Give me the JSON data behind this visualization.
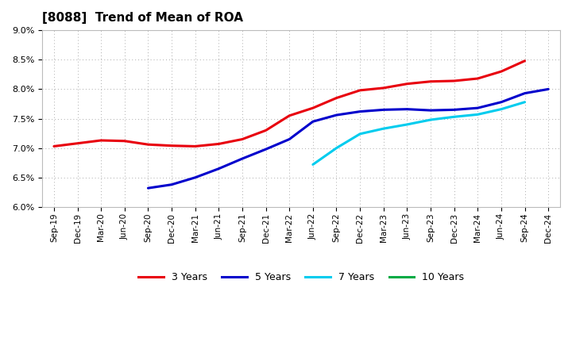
{
  "title": "[8088]  Trend of Mean of ROA",
  "xlabels": [
    "Sep-19",
    "Dec-19",
    "Mar-20",
    "Jun-20",
    "Sep-20",
    "Dec-20",
    "Mar-21",
    "Jun-21",
    "Sep-21",
    "Dec-21",
    "Mar-22",
    "Jun-22",
    "Sep-22",
    "Dec-22",
    "Mar-23",
    "Jun-23",
    "Sep-23",
    "Dec-23",
    "Mar-24",
    "Jun-24",
    "Sep-24",
    "Dec-24"
  ],
  "y_3yr": [
    7.03,
    7.08,
    7.13,
    7.12,
    7.06,
    7.04,
    7.03,
    7.07,
    7.15,
    7.3,
    7.55,
    7.68,
    7.85,
    7.98,
    8.02,
    8.09,
    8.13,
    8.14,
    8.18,
    8.3,
    8.48,
    null
  ],
  "y_5yr": [
    null,
    null,
    null,
    null,
    6.32,
    6.38,
    6.5,
    6.65,
    6.82,
    6.98,
    7.15,
    7.45,
    7.56,
    7.62,
    7.65,
    7.66,
    7.64,
    7.65,
    7.68,
    7.78,
    7.93,
    8.0
  ],
  "y_7yr": [
    null,
    null,
    null,
    null,
    null,
    null,
    null,
    null,
    null,
    null,
    null,
    6.72,
    7.0,
    7.24,
    7.33,
    7.4,
    7.48,
    7.53,
    7.57,
    7.66,
    7.78,
    null
  ],
  "y_10yr": [
    null,
    null,
    null,
    null,
    null,
    null,
    null,
    null,
    null,
    null,
    null,
    null,
    null,
    null,
    null,
    null,
    null,
    null,
    null,
    null,
    null,
    null
  ],
  "colors": {
    "3yr": "#e8000d",
    "5yr": "#0000cc",
    "7yr": "#00ccee",
    "10yr": "#00aa44"
  },
  "ylim": [
    6.0,
    9.0
  ],
  "yticks": [
    6.0,
    6.5,
    7.0,
    7.5,
    8.0,
    8.5,
    9.0
  ],
  "background": "#ffffff",
  "grid_color": "#aaaaaa",
  "legend_labels": [
    "3 Years",
    "5 Years",
    "7 Years",
    "10 Years"
  ]
}
